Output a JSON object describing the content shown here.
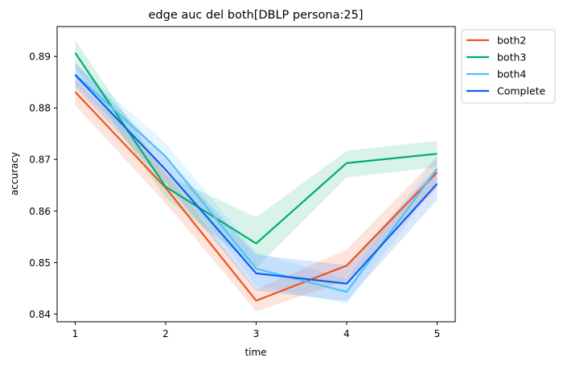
{
  "chart_data": {
    "type": "line",
    "title": "edge auc del both[DBLP persona:25]",
    "xlabel": "time",
    "ylabel": "accuracy",
    "x": [
      1,
      2,
      3,
      4,
      5
    ],
    "xticks": [
      "1",
      "2",
      "3",
      "4",
      "5"
    ],
    "xlim": [
      0.8,
      5.2
    ],
    "yticks": [
      "0.84",
      "0.85",
      "0.86",
      "0.87",
      "0.88",
      "0.89"
    ],
    "ylim": [
      0.8385,
      0.8958
    ],
    "grid": false,
    "legend_position": "outside-top-right",
    "series": [
      {
        "name": "both2",
        "color": "#f4511e",
        "values": [
          0.8831,
          0.8645,
          0.8426,
          0.8494,
          0.8675
        ],
        "lower": [
          0.8805,
          0.8615,
          0.8405,
          0.8465,
          0.8645
        ],
        "upper": [
          0.8857,
          0.8675,
          0.8448,
          0.8525,
          0.8705
        ]
      },
      {
        "name": "both3",
        "color": "#00ad6f",
        "values": [
          0.8907,
          0.8647,
          0.8537,
          0.8693,
          0.8711
        ],
        "lower": [
          0.888,
          0.8625,
          0.849,
          0.8665,
          0.8685
        ],
        "upper": [
          0.8932,
          0.867,
          0.8588,
          0.8717,
          0.8736
        ]
      },
      {
        "name": "both4",
        "color": "#4fc3f7",
        "values": [
          0.8865,
          0.8706,
          0.8488,
          0.8443,
          0.8682
        ],
        "lower": [
          0.8845,
          0.868,
          0.8455,
          0.842,
          0.8655
        ],
        "upper": [
          0.8885,
          0.8732,
          0.852,
          0.8468,
          0.8708
        ]
      },
      {
        "name": "Complete",
        "color": "#0d5ef2",
        "values": [
          0.8864,
          0.868,
          0.8479,
          0.8459,
          0.8653
        ],
        "lower": [
          0.884,
          0.8655,
          0.8445,
          0.8425,
          0.8622
        ],
        "upper": [
          0.8888,
          0.8705,
          0.8515,
          0.8495,
          0.8685
        ]
      }
    ]
  }
}
